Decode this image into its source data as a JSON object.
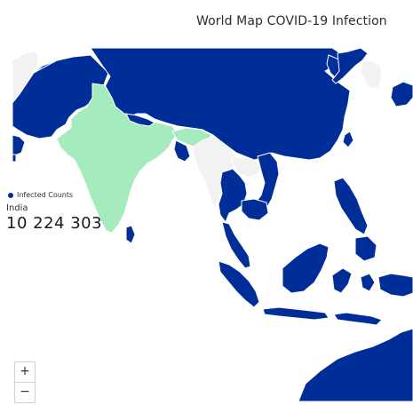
{
  "title": "World Map COVID-19 Infection",
  "colors": {
    "infected": "#002e99",
    "selected": "#a4ebbe",
    "no_data": "#f2f2f2",
    "borders": "#ffffff"
  },
  "tooltip": {
    "legend_label": "Infected Counts",
    "country": "India",
    "count": "10 224 303"
  },
  "zoom": {
    "in_label": "+",
    "out_label": "−"
  }
}
